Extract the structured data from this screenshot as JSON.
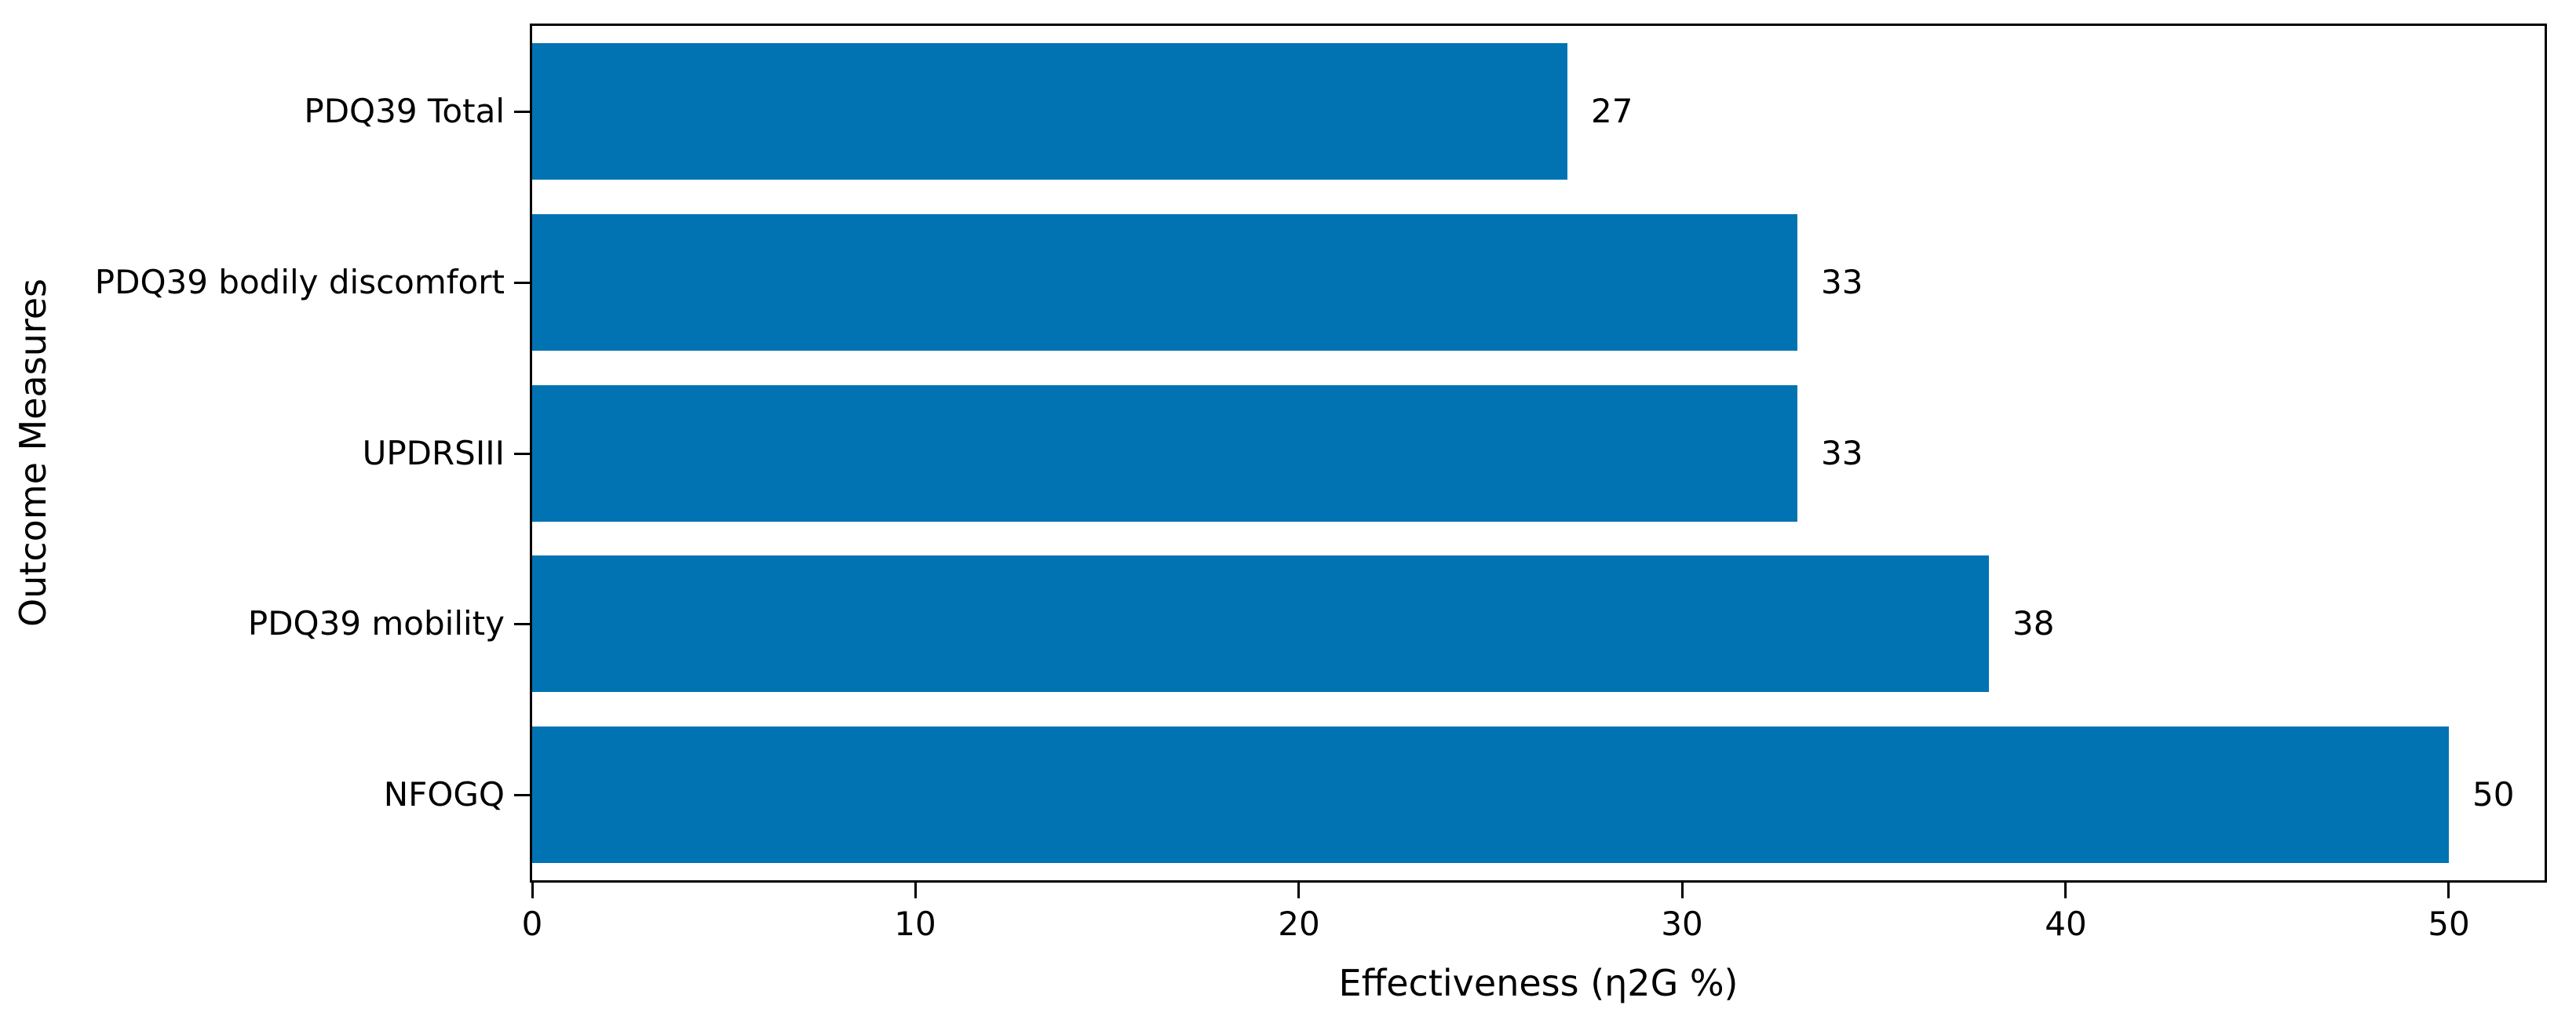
{
  "chart_data": {
    "type": "bar",
    "orientation": "horizontal",
    "title": "",
    "xlabel": "Effectiveness (η2G %)",
    "ylabel": "Outcome Measures",
    "categories": [
      "PDQ39 Total",
      "PDQ39 bodily discomfort",
      "UPDRSIII",
      "PDQ39 mobility",
      "NFOGQ"
    ],
    "values": [
      27,
      33,
      33,
      38,
      50
    ],
    "bar_value_labels": [
      "27",
      "33",
      "33",
      "38",
      "50"
    ],
    "category_order": "top-to-bottom",
    "xticks": [
      0,
      10,
      20,
      30,
      40,
      50
    ],
    "xtick_labels": [
      "0",
      "10",
      "20",
      "30",
      "40",
      "50"
    ],
    "xlim": [
      0,
      52.5
    ],
    "grid": false,
    "legend": "none",
    "colors": {
      "bar": "#0173b2",
      "text": "#000000",
      "spine": "#000000",
      "background": "#ffffff"
    }
  }
}
